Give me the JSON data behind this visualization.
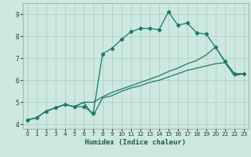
{
  "xlabel": "Humidex (Indice chaleur)",
  "background_color": "#cce8e0",
  "grid_color": "#aaccC4",
  "line_color": "#1e7a64",
  "xlim": [
    -0.5,
    23.5
  ],
  "ylim": [
    3.8,
    9.5
  ],
  "xticks": [
    0,
    1,
    2,
    3,
    4,
    5,
    6,
    7,
    8,
    9,
    10,
    11,
    12,
    13,
    14,
    15,
    16,
    17,
    18,
    19,
    20,
    21,
    22,
    23
  ],
  "yticks": [
    4,
    5,
    6,
    7,
    8,
    9
  ],
  "curve1_x": [
    0,
    1,
    2,
    3,
    4,
    5,
    6,
    7,
    8,
    9,
    10,
    11,
    12,
    13,
    14,
    15,
    16,
    17,
    18,
    19,
    20,
    21,
    22,
    23
  ],
  "curve1_y": [
    4.2,
    4.3,
    4.6,
    4.75,
    4.9,
    4.8,
    4.8,
    4.5,
    7.2,
    7.45,
    7.85,
    8.2,
    8.35,
    8.35,
    8.3,
    9.1,
    8.5,
    8.6,
    8.15,
    8.1,
    7.5,
    6.85,
    6.3,
    6.3
  ],
  "curve2_x": [
    0,
    1,
    2,
    3,
    4,
    5,
    6,
    7,
    8,
    9,
    10,
    11,
    12,
    13,
    14,
    15,
    16,
    17,
    18,
    19,
    20,
    21,
    22,
    23
  ],
  "curve2_y": [
    4.2,
    4.3,
    4.6,
    4.75,
    4.9,
    4.8,
    5.0,
    4.4,
    5.2,
    5.3,
    5.5,
    5.65,
    5.75,
    5.9,
    6.0,
    6.15,
    6.3,
    6.45,
    6.55,
    6.65,
    6.75,
    6.8,
    6.2,
    6.3
  ],
  "curve3_x": [
    0,
    1,
    2,
    3,
    4,
    5,
    6,
    7,
    8,
    9,
    10,
    11,
    12,
    13,
    14,
    15,
    16,
    17,
    18,
    19,
    20,
    21,
    22,
    23
  ],
  "curve3_y": [
    4.2,
    4.3,
    4.6,
    4.75,
    4.9,
    4.8,
    5.0,
    5.0,
    5.25,
    5.45,
    5.6,
    5.75,
    5.9,
    6.05,
    6.2,
    6.4,
    6.55,
    6.75,
    6.9,
    7.15,
    7.5,
    6.85,
    6.3,
    6.3
  ]
}
